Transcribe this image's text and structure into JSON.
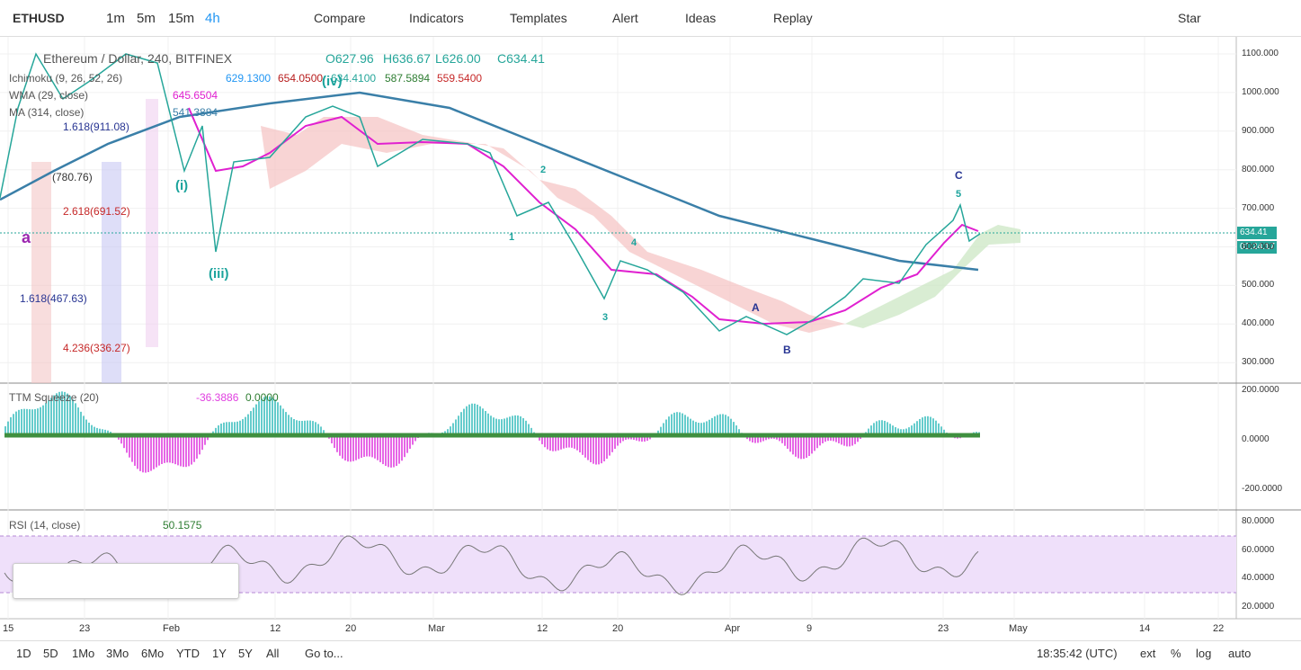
{
  "toolbar": {
    "symbol": "ETHUSD",
    "intervals": [
      "1m",
      "5m",
      "15m",
      "4h"
    ],
    "buttons": [
      "Compare",
      "Indicators",
      "Templates",
      "Alert",
      "Ideas",
      "Replay"
    ],
    "star": "Star"
  },
  "legend": {
    "title": "Ethereum / Dollar, 240, BITFINEX",
    "ohlc": [
      "O627.96",
      "H636.67",
      "L626.00",
      "C634.41"
    ],
    "ichimoku": {
      "name": "Ichimoku (9, 26, 52, 26)",
      "values": [
        "629.1300",
        "654.0500",
        "634.4100",
        "587.5894",
        "559.5400"
      ]
    },
    "wma": {
      "name": "WMA (29, close)",
      "value": "645.6504"
    },
    "ma": {
      "name": "MA (314, close)",
      "value": "541.3884"
    }
  },
  "price_axis": {
    "labels": [
      "1100.000",
      "1000.000",
      "900.000",
      "800.000",
      "700.000",
      "600.000",
      "500.000",
      "400.000",
      "300.000"
    ],
    "last_price": "634.41",
    "countdown": "01:24:17"
  },
  "waves": {
    "fibs": [
      "2.618(691.52)",
      "1.618(467.63)",
      "4.236(336.27)",
      "1.618(911.08)",
      "(780.76)"
    ],
    "labels": [
      "(iii)",
      "(iv)",
      "(i)",
      "a",
      "1",
      "2",
      "3",
      "4",
      "5",
      "A",
      "B",
      "C"
    ]
  },
  "ttm": {
    "name": "TTM Squeeze (20)",
    "values": [
      "-36.3886",
      "0.0000"
    ],
    "axis": [
      "200.0000",
      "0.0000",
      "-200.0000"
    ]
  },
  "rsi": {
    "name": "RSI (14, close)",
    "value": "50.1575",
    "axis": [
      "80.0000",
      "60.0000",
      "40.0000",
      "20.0000"
    ]
  },
  "time_axis": [
    "15",
    "23",
    "Feb",
    "12",
    "20",
    "Mar",
    "12",
    "20",
    "Apr",
    "9",
    "23",
    "May",
    "14",
    "22"
  ],
  "bottom": {
    "ranges": [
      "1D",
      "5D",
      "1Mo",
      "3Mo",
      "6Mo",
      "YTD",
      "1Y",
      "5Y",
      "All"
    ],
    "goto": "Go to...",
    "clock": "18:35:42 (UTC)",
    "options": [
      "ext",
      "%",
      "log",
      "auto"
    ]
  }
}
